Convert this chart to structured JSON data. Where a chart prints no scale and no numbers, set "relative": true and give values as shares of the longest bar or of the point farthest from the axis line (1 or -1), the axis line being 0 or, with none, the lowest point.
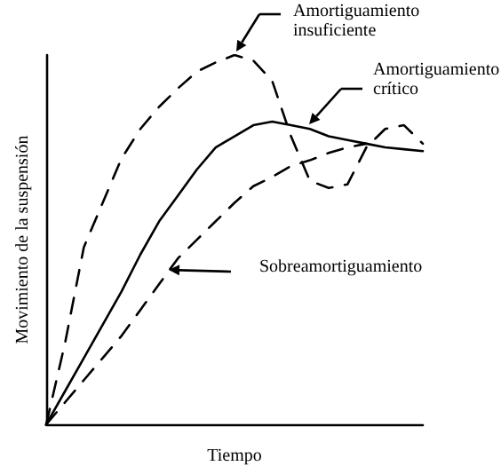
{
  "chart_data": {
    "type": "line",
    "relative": true,
    "xlabel": "Tiempo",
    "ylabel": "Movimiento de la suspensión",
    "grid": false,
    "marker": "none",
    "categories": [
      null,
      null,
      null,
      null,
      null,
      null,
      null,
      null,
      null,
      null,
      null,
      null,
      null,
      null,
      null,
      null,
      null,
      null,
      null,
      null,
      null
    ],
    "series": [
      {
        "color": "#000000",
        "line_style": "dashed",
        "values": [
          0,
          0.22,
          0.48,
          0.6,
          0.72,
          0.8,
          0.86,
          0.91,
          0.955,
          0.98,
          1.0,
          0.985,
          0.93,
          0.78,
          0.66,
          0.64,
          0.65,
          0.75,
          0.8,
          0.81,
          0.76
        ]
      },
      {
        "color": "#000000",
        "line_style": "solid",
        "values": [
          0,
          0.09,
          0.18,
          0.27,
          0.36,
          0.46,
          0.55,
          0.62,
          0.69,
          0.75,
          0.78,
          0.81,
          0.82,
          0.81,
          0.8,
          0.78,
          0.77,
          0.76,
          0.75,
          0.745,
          0.74
        ]
      },
      {
        "color": "#000000",
        "line_style": "dashed",
        "values": [
          0,
          0.06,
          0.12,
          0.18,
          0.24,
          0.31,
          0.38,
          0.45,
          0.5,
          0.55,
          0.6,
          0.645,
          0.67,
          0.7,
          0.715,
          0.735,
          0.75,
          0.76,
          null,
          null,
          null
        ]
      }
    ],
    "annotations": [
      "Amortiguamiento insuficiente",
      "Amortiguamiento crítico",
      "Sobreamortiguamiento"
    ]
  }
}
